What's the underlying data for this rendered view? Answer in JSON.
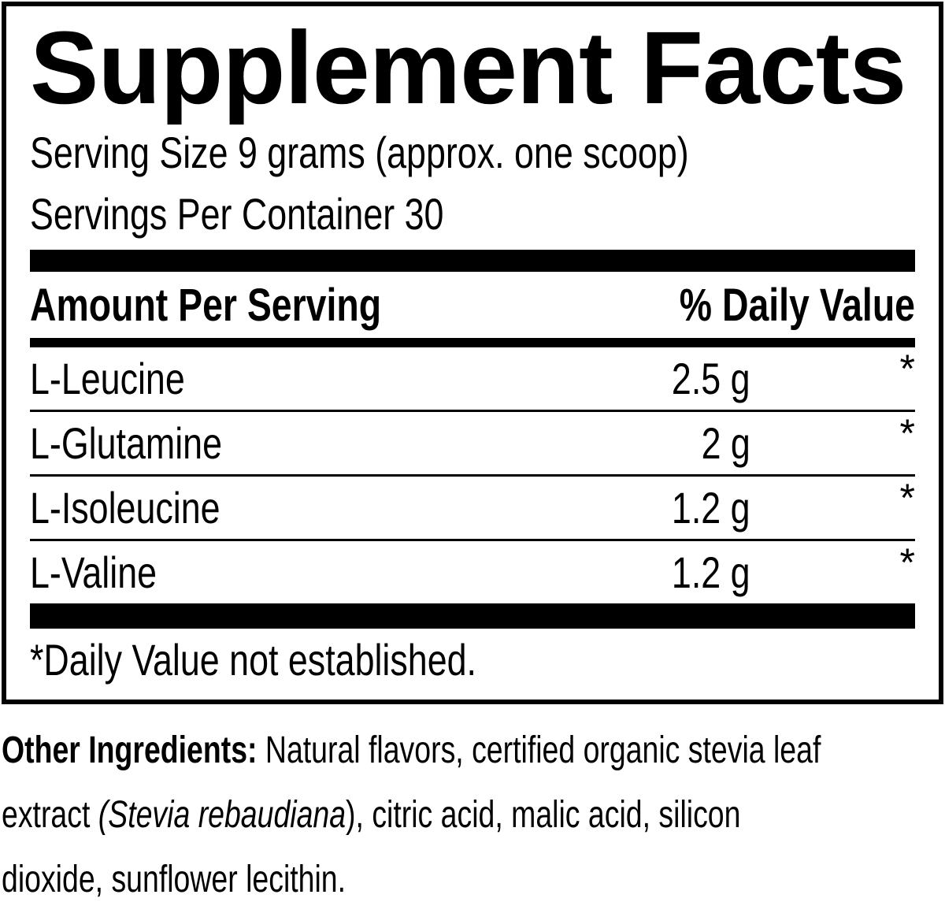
{
  "colors": {
    "text": "#000000",
    "background": "#ffffff"
  },
  "panel": {
    "title": "Supplement Facts",
    "serving_size": "Serving Size 9 grams (approx. one scoop)",
    "servings_per_container": "Servings Per Container 30",
    "table": {
      "header_left": "Amount Per Serving",
      "header_right": "% Daily Value",
      "rows": [
        {
          "name": "L-Leucine",
          "amount": "2.5 g",
          "daily_value": "*"
        },
        {
          "name": "L-Glutamine",
          "amount": "2 g",
          "daily_value": "*"
        },
        {
          "name": "L-Isoleucine",
          "amount": "1.2 g",
          "daily_value": "*"
        },
        {
          "name": "L-Valine",
          "amount": "1.2 g",
          "daily_value": "*"
        }
      ]
    },
    "footnote": "*Daily Value not established."
  },
  "other_ingredients": {
    "label": "Other Ingredients:",
    "line1_rest": " Natural flavors, certified organic stevia leaf",
    "line2_pre": "extract ",
    "line2_italic": "(Stevia rebaudiana",
    "line2_post": "), citric acid, malic acid, silicon",
    "line3": "dioxide, sunflower lecithin."
  }
}
